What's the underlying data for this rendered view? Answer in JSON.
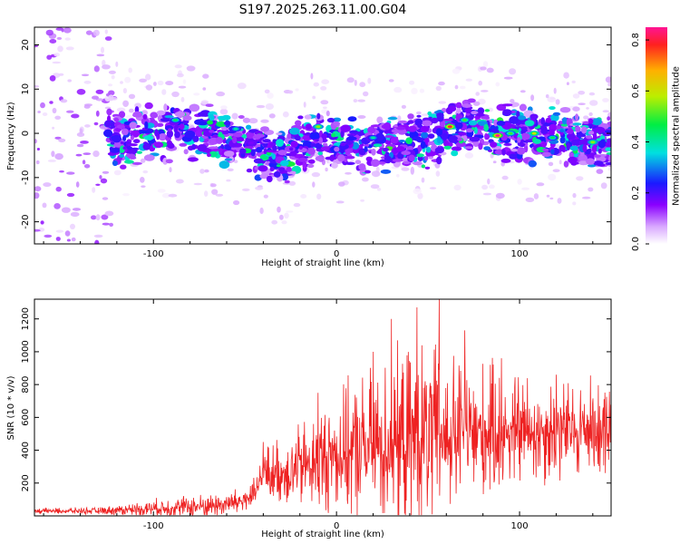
{
  "title": "S197.2025.263.11.00.G04",
  "chart_data": [
    {
      "type": "heatmap",
      "name": "spectrogram",
      "xlabel": "Height of straight line (km)",
      "ylabel": "Frequency (Hz)",
      "xlim": [
        -165,
        150
      ],
      "ylim": [
        -25,
        24
      ],
      "xticks": [
        -100,
        0,
        100
      ],
      "yticks": [
        -20,
        -10,
        0,
        10,
        20
      ],
      "colorbar": {
        "label": "Normalized spectral amplitude",
        "range": [
          0,
          0.85
        ],
        "ticks": [
          0.0,
          0.2,
          0.4,
          0.6,
          0.8
        ],
        "tick_labels": [
          "0.0",
          "0.2",
          "0.4",
          "0.6",
          "0.8"
        ]
      },
      "ridge": {
        "x": [
          -165,
          -140,
          -120,
          -100,
          -85,
          -70,
          -55,
          -40,
          -30,
          -20,
          -10,
          0,
          10,
          20,
          30,
          40,
          50,
          60,
          70,
          80,
          90,
          100,
          110,
          120,
          130,
          140,
          150
        ],
        "freq": [
          -1,
          -1,
          -1,
          0,
          1,
          0,
          -2,
          -4,
          -6,
          -3,
          0,
          -2,
          -3,
          -2,
          -2,
          -2,
          -1,
          0,
          2,
          1,
          0,
          0,
          -1,
          -1,
          -1,
          -2,
          -2
        ]
      },
      "hotspots": [
        {
          "x": 62,
          "freq": 1.5,
          "amp": 0.8
        },
        {
          "x": 88,
          "freq": -0.5,
          "amp": 0.85
        },
        {
          "x": 108,
          "freq": 0,
          "amp": 0.6
        },
        {
          "x": 95,
          "freq": 0,
          "amp": 0.5
        },
        {
          "x": -10,
          "freq": 1.5,
          "amp": 0.55
        },
        {
          "x": -88,
          "freq": 3,
          "amp": 0.45
        },
        {
          "x": -55,
          "freq": 1,
          "amp": 0.4
        },
        {
          "x": 140,
          "freq": -2,
          "amp": 0.55
        },
        {
          "x": 118,
          "freq": -1,
          "amp": 0.45
        },
        {
          "x": 70,
          "freq": 3,
          "amp": 0.5
        },
        {
          "x": 20,
          "freq": -1,
          "amp": 0.4
        }
      ]
    },
    {
      "type": "line",
      "name": "snr",
      "xlabel": "Height of straight line (km)",
      "ylabel": "SNR (10 * v/v)",
      "xlim": [
        -165,
        150
      ],
      "ylim": [
        0,
        1320
      ],
      "xticks": [
        -100,
        0,
        100
      ],
      "yticks": [
        200,
        400,
        600,
        800,
        1000,
        1200
      ],
      "color": "#ee2222",
      "envelope": {
        "x": [
          -165,
          -130,
          -110,
          -90,
          -70,
          -55,
          -45,
          -40,
          -35,
          -25,
          -10,
          0,
          10,
          20,
          30,
          40,
          50,
          60,
          70,
          80,
          90,
          100,
          110,
          120,
          130,
          140,
          150
        ],
        "base": [
          30,
          30,
          40,
          50,
          60,
          80,
          120,
          250,
          260,
          280,
          330,
          380,
          400,
          420,
          450,
          460,
          470,
          480,
          500,
          500,
          520,
          520,
          520,
          520,
          520,
          540,
          540
        ],
        "spread": [
          20,
          25,
          50,
          80,
          90,
          100,
          120,
          200,
          220,
          280,
          380,
          420,
          500,
          560,
          620,
          650,
          700,
          600,
          560,
          500,
          450,
          420,
          400,
          380,
          360,
          360,
          340
        ]
      },
      "peaks": [
        {
          "x": -40,
          "y": 450
        },
        {
          "x": -10,
          "y": 750
        },
        {
          "x": 20,
          "y": 1000
        },
        {
          "x": 30,
          "y": 1200
        },
        {
          "x": 44,
          "y": 1270
        },
        {
          "x": 56,
          "y": 1320
        },
        {
          "x": 70,
          "y": 1130
        },
        {
          "x": 84,
          "y": 920
        },
        {
          "x": 90,
          "y": 960
        },
        {
          "x": 120,
          "y": 860
        }
      ]
    }
  ]
}
